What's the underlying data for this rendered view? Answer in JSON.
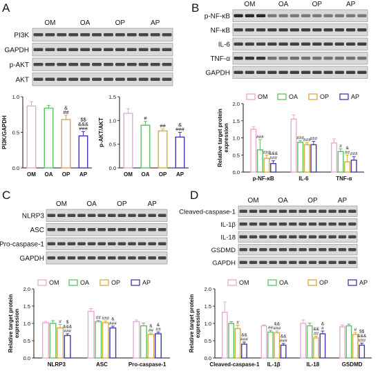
{
  "colors": {
    "OM": "#e8a7d3",
    "OA": "#5cbf60",
    "OP": "#d8a93c",
    "AP": "#3d36b0"
  },
  "panels": {
    "A": {
      "letter": "A",
      "groups": [
        "OM",
        "OA",
        "OP",
        "AP"
      ],
      "blots": [
        "PI3K",
        "GAPDH",
        "p-AKT",
        "AKT"
      ]
    },
    "B": {
      "letter": "B",
      "groups": [
        "OM",
        "OA",
        "OP",
        "AP"
      ],
      "blots": [
        "p-NF-κB",
        "NF-κB",
        "IL-6",
        "TNF-α",
        "GAPDH"
      ]
    },
    "C": {
      "letter": "C",
      "groups": [
        "OM",
        "OA",
        "OP",
        "AP"
      ],
      "blots": [
        "NLRP3",
        "ASC",
        "Pro-caspase-1",
        "GAPDH"
      ]
    },
    "D": {
      "letter": "D",
      "groups": [
        "OM",
        "OA",
        "OP",
        "AP"
      ],
      "blots": [
        "Cleaved-caspase-1",
        "IL-1β",
        "IL-18",
        "GSDMD",
        "GAPDH"
      ]
    }
  },
  "chart_data": [
    {
      "id": "A1",
      "type": "bar",
      "ylabel": "PI3K/GAPDH",
      "categories": [
        "OM",
        "OA",
        "OP",
        "AP"
      ],
      "values": [
        0.87,
        0.84,
        0.68,
        0.45
      ],
      "errors": [
        0.06,
        0.04,
        0.06,
        0.06
      ],
      "ylim": [
        0,
        1.0
      ],
      "annotations": [
        [],
        [],
        [
          "&",
          "##"
        ],
        [
          "$$",
          "&&&",
          "###"
        ]
      ]
    },
    {
      "id": "A2",
      "type": "bar",
      "ylabel": "p-AKT/AKT",
      "categories": [
        "OM",
        "OA",
        "OP",
        "AP"
      ],
      "values": [
        1.15,
        0.9,
        0.78,
        0.65
      ],
      "errors": [
        0.1,
        0.08,
        0.04,
        0.1
      ],
      "ylim": [
        0,
        1.5
      ],
      "annotations": [
        [],
        [
          "#"
        ],
        [
          "##"
        ],
        [
          "&",
          "###"
        ]
      ]
    },
    {
      "id": "B",
      "type": "bar",
      "ylabel": "Relative target protein expression",
      "categories": [
        "p-NF-κB",
        "IL-6",
        "TNF-α"
      ],
      "legend": [
        "OM",
        "OA",
        "OP",
        "AP"
      ],
      "series": [
        {
          "name": "OM",
          "values": [
            1.25,
            1.55,
            0.85
          ],
          "errors": [
            0.08,
            0.12,
            0.12
          ]
        },
        {
          "name": "OA",
          "values": [
            0.65,
            0.87,
            0.6
          ],
          "errors": [
            0.3,
            0.05,
            0.08
          ]
        },
        {
          "name": "OP",
          "values": [
            0.4,
            0.8,
            0.3
          ],
          "errors": [
            0.1,
            0.06,
            0.2
          ]
        },
        {
          "name": "AP",
          "values": [
            0.25,
            0.8,
            0.35
          ],
          "errors": [
            0.08,
            0.1,
            0.1
          ]
        }
      ],
      "ylim": [
        0,
        2.0
      ],
      "annotations": [
        [
          [],
          [
            "###"
          ],
          [
            "###"
          ],
          [
            "&&&",
            "###"
          ]
        ],
        [
          [],
          [
            "###"
          ],
          [
            "###"
          ],
          [
            "###"
          ]
        ],
        [
          [],
          [
            "#"
          ],
          [
            "&",
            "##"
          ],
          [
            "###"
          ]
        ]
      ]
    },
    {
      "id": "C",
      "type": "bar",
      "ylabel": "Relative target protein expression",
      "categories": [
        "NLRP3",
        "ASC",
        "Pro-caspase-1"
      ],
      "legend": [
        "OM",
        "OA",
        "OP",
        "AP"
      ],
      "series": [
        {
          "name": "OM",
          "values": [
            1.02,
            1.35,
            1.05
          ],
          "errors": [
            0.04,
            0.08,
            0.05
          ]
        },
        {
          "name": "OA",
          "values": [
            1.0,
            1.05,
            0.93
          ],
          "errors": [
            0.08,
            0.04,
            0.08
          ]
        },
        {
          "name": "OP",
          "values": [
            0.87,
            1.02,
            0.68
          ],
          "errors": [
            0.1,
            0.05,
            0.04
          ]
        },
        {
          "name": "AP",
          "values": [
            0.65,
            0.87,
            0.7
          ],
          "errors": [
            0.05,
            0.05,
            0.05
          ]
        }
      ],
      "ylim": [
        0,
        2.0
      ],
      "annotations": [
        [
          [],
          [],
          [
            "#"
          ],
          [
            "$",
            "&&&",
            "###"
          ]
        ],
        [
          [],
          [
            "##"
          ],
          [
            "###"
          ],
          [
            "&",
            "###"
          ]
        ],
        [
          [],
          [],
          [
            "&",
            "##"
          ],
          [
            "&",
            "##"
          ]
        ]
      ]
    },
    {
      "id": "D",
      "type": "bar",
      "ylabel": "Relative target protein expression",
      "categories": [
        "Cleaved-caspase-1",
        "IL-1β",
        "IL-18",
        "GSDMD"
      ],
      "legend": [
        "OM",
        "OA",
        "OP",
        "AP"
      ],
      "series": [
        {
          "name": "OM",
          "values": [
            1.32,
            0.93,
            1.0,
            0.9
          ],
          "errors": [
            0.3,
            0.03,
            0.1,
            0.05
          ]
        },
        {
          "name": "OA",
          "values": [
            1.0,
            0.75,
            0.93,
            0.93
          ],
          "errors": [
            0.05,
            0.05,
            0.08,
            0.05
          ]
        },
        {
          "name": "OP",
          "values": [
            0.85,
            0.73,
            0.58,
            0.68
          ],
          "errors": [
            0.1,
            0.05,
            0.05,
            0.06
          ]
        },
        {
          "name": "AP",
          "values": [
            0.4,
            0.37,
            0.7,
            0.37
          ],
          "errors": [
            0.06,
            0.05,
            0.08,
            0.06
          ]
        }
      ],
      "ylim": [
        0,
        2.0
      ],
      "annotations": [
        [
          [],
          [],
          [
            "#"
          ],
          [
            "&&",
            "###"
          ]
        ],
        [
          [],
          [
            "##"
          ],
          [
            "&&",
            "###"
          ],
          [
            "&&",
            "###"
          ]
        ],
        [
          [],
          [],
          [
            "&&",
            "##"
          ],
          [
            "&",
            "#"
          ]
        ],
        [
          [],
          [],
          [
            "#"
          ],
          [
            "$$",
            "&&&",
            "###"
          ]
        ]
      ]
    }
  ]
}
